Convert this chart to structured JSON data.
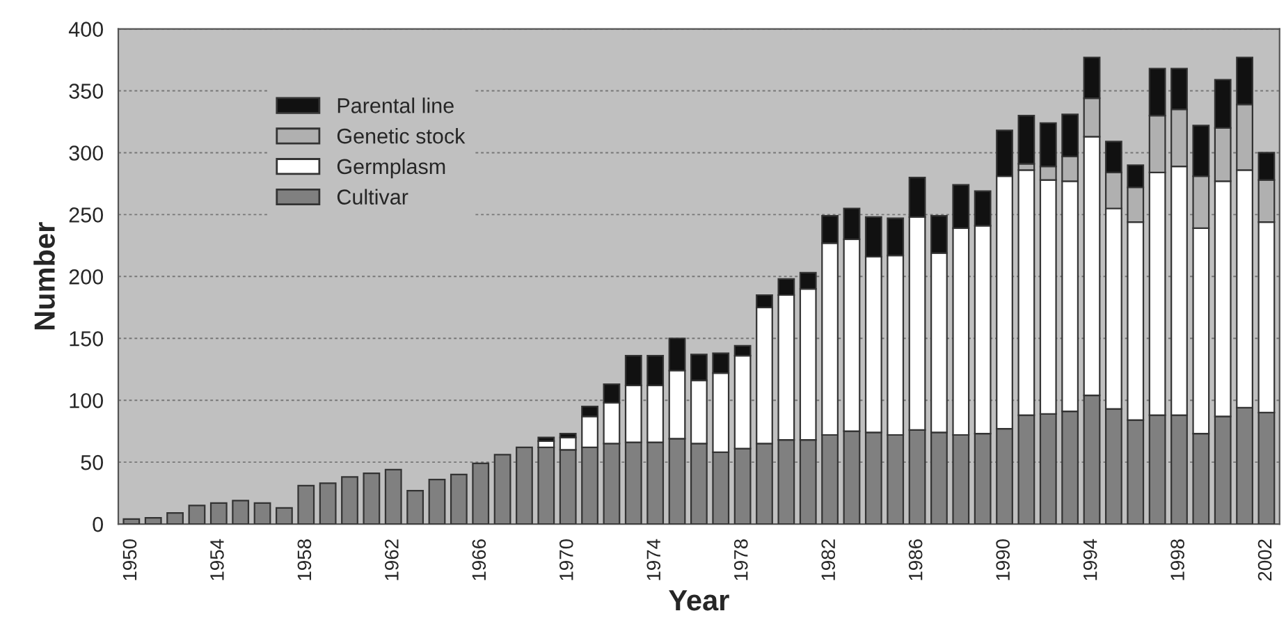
{
  "chart_data": {
    "type": "bar",
    "stacked": true,
    "xlabel": "Year",
    "ylabel": "Number",
    "categories": [
      "1950",
      null,
      null,
      null,
      "1954",
      null,
      null,
      null,
      "1958",
      null,
      null,
      null,
      "1962",
      null,
      null,
      null,
      "1966",
      null,
      null,
      null,
      "1970",
      null,
      null,
      null,
      "1974",
      null,
      null,
      null,
      "1978",
      null,
      null,
      null,
      "1982",
      null,
      null,
      null,
      "1986",
      null,
      null,
      null,
      "1990",
      null,
      null,
      null,
      "1994",
      null,
      null,
      null,
      "1998",
      null,
      null,
      null,
      "2002"
    ],
    "series": [
      {
        "name": "Cultivar",
        "color": "#808080",
        "values": [
          4,
          5,
          9,
          15,
          17,
          19,
          17,
          13,
          31,
          33,
          38,
          41,
          44,
          27,
          36,
          40,
          49,
          56,
          62,
          62,
          60,
          62,
          65,
          66,
          66,
          69,
          65,
          58,
          61,
          65,
          68,
          68,
          72,
          75,
          74,
          72,
          76,
          74,
          72,
          73,
          77,
          88,
          89,
          91,
          104,
          93,
          84,
          88,
          88,
          73,
          87,
          94,
          90
        ]
      },
      {
        "name": "Germplasm",
        "color": "#ffffff",
        "values": [
          null,
          null,
          null,
          null,
          null,
          null,
          null,
          null,
          null,
          null,
          null,
          null,
          null,
          null,
          null,
          null,
          null,
          null,
          null,
          5,
          10,
          25,
          33,
          46,
          46,
          55,
          51,
          64,
          75,
          110,
          117,
          122,
          155,
          155,
          142,
          145,
          172,
          145,
          167,
          168,
          204,
          198,
          189,
          186,
          209,
          162,
          160,
          196,
          201,
          166,
          190,
          192,
          154
        ]
      },
      {
        "name": "Genetic stock",
        "color": "#b0b0b0",
        "values": [
          null,
          null,
          null,
          null,
          null,
          null,
          null,
          null,
          null,
          null,
          null,
          null,
          null,
          null,
          null,
          null,
          null,
          null,
          null,
          null,
          null,
          null,
          null,
          null,
          null,
          null,
          null,
          null,
          null,
          null,
          null,
          null,
          null,
          null,
          null,
          null,
          null,
          null,
          null,
          null,
          null,
          5,
          11,
          20,
          31,
          29,
          28,
          46,
          46,
          42,
          43,
          53,
          34
        ]
      },
      {
        "name": "Parental line",
        "color": "#111111",
        "values": [
          null,
          null,
          null,
          null,
          null,
          null,
          null,
          null,
          null,
          null,
          null,
          null,
          null,
          null,
          null,
          null,
          null,
          null,
          null,
          3,
          3,
          8,
          15,
          24,
          24,
          26,
          21,
          16,
          8,
          10,
          13,
          13,
          22,
          25,
          32,
          30,
          32,
          30,
          35,
          28,
          37,
          39,
          35,
          34,
          33,
          25,
          18,
          38,
          33,
          41,
          39,
          38,
          22
        ]
      }
    ],
    "ylim": [
      0,
      400
    ],
    "yticks": [
      0,
      50,
      100,
      150,
      200,
      250,
      300,
      350,
      400
    ],
    "grid": "y",
    "legend": "top left"
  }
}
